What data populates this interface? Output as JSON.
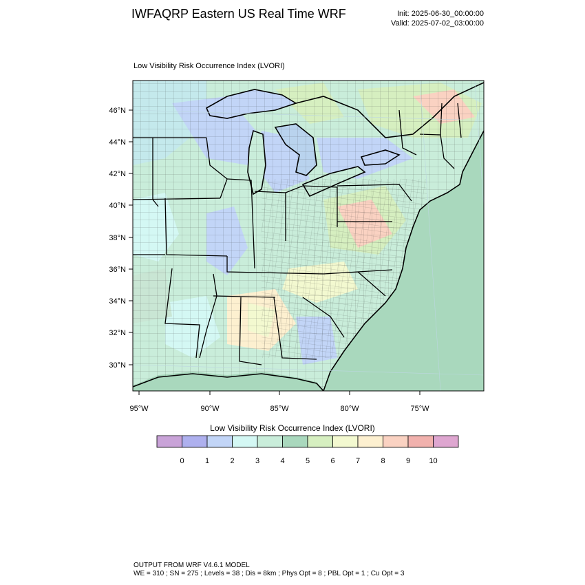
{
  "header": {
    "title": "IWFAQRP Eastern US Real Time WRF",
    "init": "Init: 2025-06-30_00:00:00",
    "valid": "Valid: 2025-07-02_03:00:00"
  },
  "plot": {
    "title": "Low Visibility Risk Occurrence Index   (LVORI)",
    "lat_labels": [
      "46°N",
      "44°N",
      "42°N",
      "40°N",
      "38°N",
      "36°N",
      "34°N",
      "32°N",
      "30°N"
    ],
    "lon_labels": [
      "95°W",
      "90°W",
      "85°W",
      "80°W",
      "75°W"
    ]
  },
  "colorbar": {
    "title": "Low Visibility Risk Occurrence Index  (LVORI)",
    "labels": [
      "0",
      "1",
      "2",
      "3",
      "4",
      "5",
      "6",
      "7",
      "8",
      "9",
      "10"
    ],
    "colors": [
      "#c9a3d8",
      "#aeb0ee",
      "#c2d5f7",
      "#d4f8f4",
      "#c9edda",
      "#a9d8bd",
      "#d6efc0",
      "#f3f9d0",
      "#fdf0d0",
      "#fad2c2",
      "#f1b1ad",
      "#dea6d0"
    ]
  },
  "footer": {
    "line1": "OUTPUT FROM WRF V4.6.1 MODEL",
    "line2": "WE = 310 ; SN = 275 ; Levels = 38 ; Dis = 8km ; Phys Opt = 8 ; PBL Opt = 1 ; Cu Opt = 3"
  }
}
